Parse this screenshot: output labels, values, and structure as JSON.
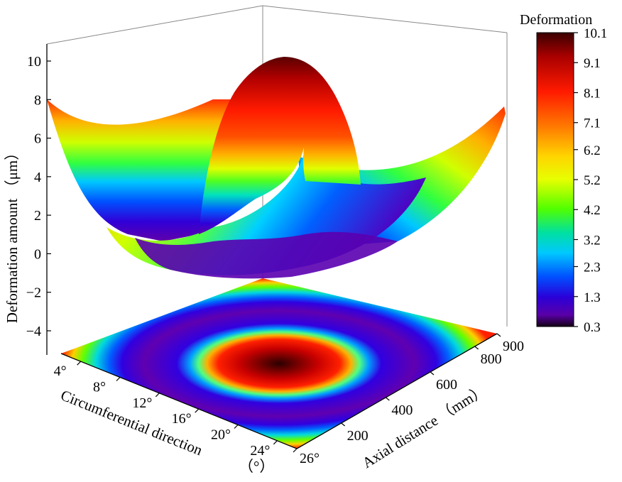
{
  "chart_data": {
    "type": "surface3d",
    "z_axis": {
      "label": "Deformation amount （μm）",
      "ticks": [
        10,
        8,
        6,
        4,
        2,
        0,
        -2,
        -4
      ],
      "range": [
        -5,
        11
      ]
    },
    "x_axis": {
      "label": "Circumferential direction",
      "unit": "（°）",
      "ticks": [
        "4°",
        "8°",
        "12°",
        "16°",
        "20°",
        "24°",
        "26°"
      ],
      "range": [
        2,
        26
      ]
    },
    "y_axis": {
      "label": "Axial distance （mm）",
      "ticks": [
        200,
        400,
        600,
        800,
        900
      ],
      "range": [
        0,
        900
      ]
    },
    "colorbar": {
      "title": "Deformation",
      "ticks": [
        10.1,
        9.1,
        8.1,
        7.1,
        6.2,
        5.2,
        4.2,
        3.2,
        2.3,
        1.3,
        0.3
      ],
      "range": [
        0.3,
        10.1
      ],
      "colormap": [
        "#5a0000",
        "#c80000",
        "#ff1a00",
        "#ff7a00",
        "#ffd400",
        "#e6ff00",
        "#50ff00",
        "#00e0a0",
        "#00c8ff",
        "#0050ff",
        "#2a00d8",
        "#5a00a8",
        "#120012"
      ]
    },
    "surface": {
      "description_values": {
        "center_peak": 10.1,
        "corner_max": 8.1,
        "valley_min": 0.3
      }
    },
    "grid": false
  }
}
